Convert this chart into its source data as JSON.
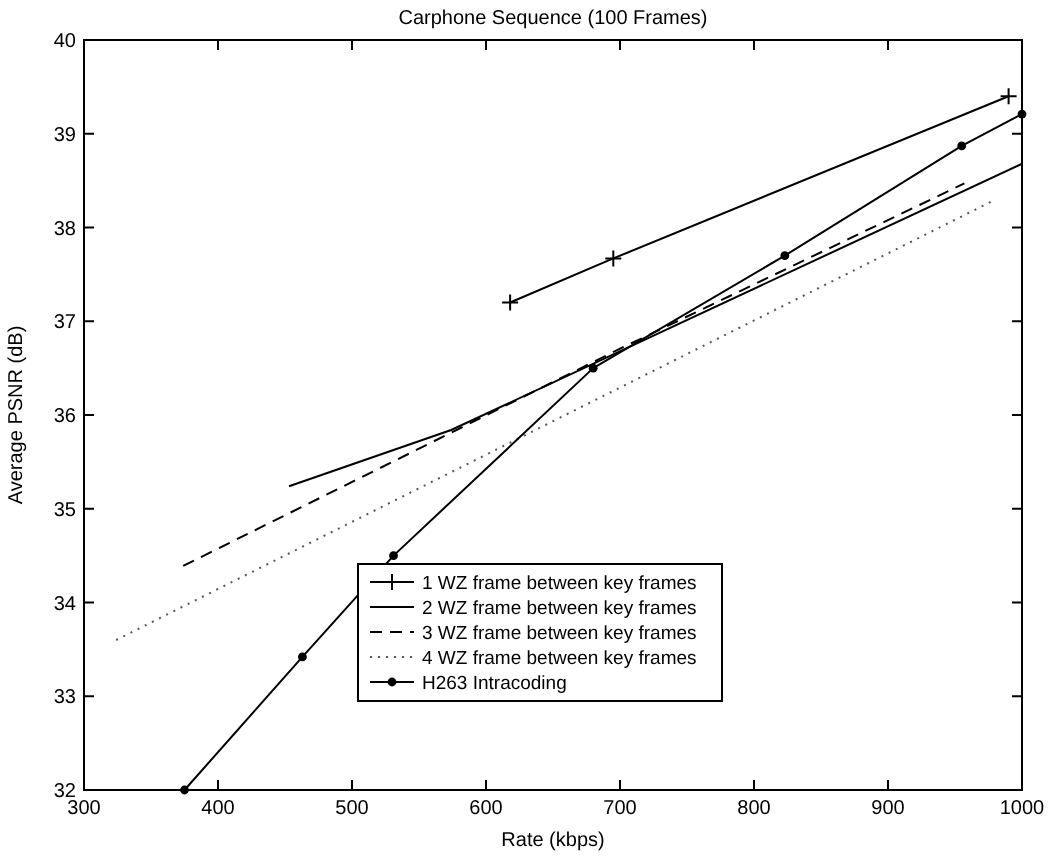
{
  "chart_data": {
    "type": "line",
    "title": "Carphone Sequence (100 Frames)",
    "xlabel": "Rate (kbps)",
    "ylabel": "Average PSNR (dB)",
    "xlim": [
      300,
      1000
    ],
    "ylim": [
      32,
      40
    ],
    "xticks": [
      300,
      400,
      500,
      600,
      700,
      800,
      900,
      1000
    ],
    "yticks": [
      32,
      33,
      34,
      35,
      36,
      37,
      38,
      39,
      40
    ],
    "grid": false,
    "legend": "bottom right",
    "series": [
      {
        "name": "1 WZ frame between key frames",
        "color": "#000000",
        "marker": "cross",
        "line_style": "solid",
        "x": [
          618,
          695,
          990
        ],
        "values": [
          37.2,
          37.67,
          39.4
        ]
      },
      {
        "name": "2 WZ frame between key frames",
        "color": "#000000",
        "marker": "none",
        "line_style": "solid",
        "x": [
          453,
          574,
          1000
        ],
        "values": [
          35.24,
          35.84,
          38.68
        ]
      },
      {
        "name": "3 WZ frame between key frames",
        "color": "#000000",
        "marker": "none",
        "line_style": "dashed",
        "x": [
          374,
          699,
          957
        ],
        "values": [
          34.39,
          36.7,
          38.47
        ]
      },
      {
        "name": "4 WZ frame between key frames",
        "color": "#555555",
        "marker": "none",
        "line_style": "dotted",
        "x": [
          324,
          979
        ],
        "values": [
          33.6,
          38.29
        ]
      },
      {
        "name": "H263 Intracoding",
        "color": "#000000",
        "marker": "circle",
        "line_style": "solid",
        "x": [
          375,
          463,
          531,
          680,
          823,
          955,
          1000
        ],
        "values": [
          32,
          33.42,
          34.5,
          36.5,
          37.7,
          38.87,
          39.21
        ]
      }
    ]
  }
}
